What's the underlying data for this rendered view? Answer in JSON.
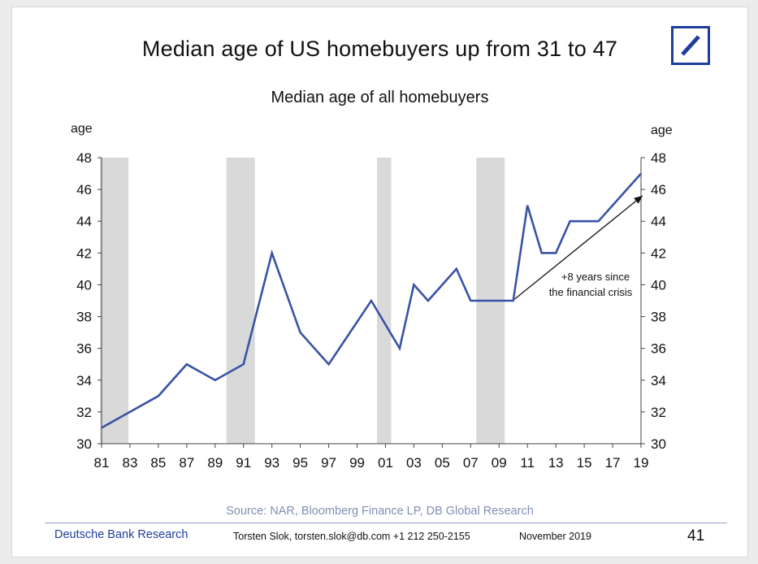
{
  "header": {
    "title": "Median age of US homebuyers up from 31 to 47",
    "subtitle": "Median age of all homebuyers"
  },
  "chart_data": {
    "type": "line",
    "title": "Median age of all homebuyers",
    "ylabel_left": "age",
    "ylabel_right": "age",
    "ylim": [
      30,
      48
    ],
    "yticks": [
      30,
      32,
      34,
      36,
      38,
      40,
      42,
      44,
      46,
      48
    ],
    "xlim": [
      1981,
      2019
    ],
    "xticks": [
      "81",
      "83",
      "85",
      "87",
      "89",
      "91",
      "93",
      "95",
      "97",
      "99",
      "01",
      "03",
      "05",
      "07",
      "09",
      "11",
      "13",
      "15",
      "17",
      "19"
    ],
    "series": [
      {
        "x": [
          1981,
          1985,
          1987,
          1989,
          1991,
          1993,
          1995,
          1997,
          2000,
          2002,
          2003,
          2004,
          2006,
          2007,
          2010,
          2011,
          2012,
          2013,
          2014,
          2016,
          2019
        ],
        "values": [
          31,
          33,
          35,
          34,
          35,
          42,
          37,
          35,
          39,
          36,
          40,
          39,
          41,
          39,
          39,
          45,
          42,
          42,
          44,
          44,
          47
        ],
        "color": "#3953a4"
      }
    ],
    "recession_bands": [
      {
        "start": 1980.9,
        "end": 1982.9
      },
      {
        "start": 1989.8,
        "end": 1991.8
      },
      {
        "start": 2000.4,
        "end": 2001.4
      },
      {
        "start": 2007.4,
        "end": 2009.4
      }
    ],
    "annotation": {
      "lines": [
        "+8 years since",
        "the financial crisis"
      ],
      "arrow_from": {
        "x": 2010.1,
        "y": 39.1
      },
      "arrow_to": {
        "x": 2019.1,
        "y": 45.6
      }
    },
    "grid": false
  },
  "footer": {
    "source": "Source: NAR, Bloomberg Finance LP, DB Global Research",
    "brand": "Deutsche Bank Research",
    "author": "Torsten Slok, torsten.slok@db.com +1 212 250-2155",
    "date": "November 2019",
    "page_number": "41"
  },
  "colors": {
    "line": "#3953a4",
    "recession": "#d9d9d9",
    "brand": "#1f3d9b",
    "source_text": "#7f8fb5"
  }
}
